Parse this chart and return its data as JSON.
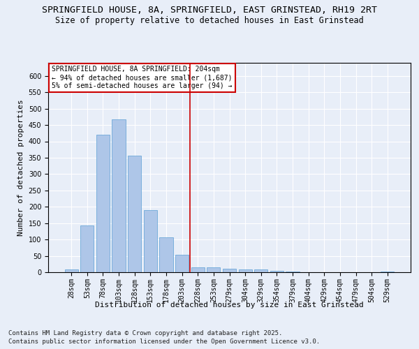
{
  "title1": "SPRINGFIELD HOUSE, 8A, SPRINGFIELD, EAST GRINSTEAD, RH19 2RT",
  "title2": "Size of property relative to detached houses in East Grinstead",
  "xlabel": "Distribution of detached houses by size in East Grinstead",
  "ylabel": "Number of detached properties",
  "bar_color": "#aec6e8",
  "bar_edge_color": "#5a9fd4",
  "background_color": "#e8eef8",
  "fig_background_color": "#e8eef8",
  "grid_color": "#ffffff",
  "categories": [
    "28sqm",
    "53sqm",
    "78sqm",
    "103sqm",
    "128sqm",
    "153sqm",
    "178sqm",
    "203sqm",
    "228sqm",
    "253sqm",
    "279sqm",
    "304sqm",
    "329sqm",
    "354sqm",
    "379sqm",
    "404sqm",
    "429sqm",
    "454sqm",
    "479sqm",
    "504sqm",
    "529sqm"
  ],
  "values": [
    8,
    143,
    421,
    468,
    356,
    190,
    107,
    53,
    16,
    14,
    11,
    8,
    8,
    4,
    2,
    1,
    1,
    0,
    0,
    0,
    2
  ],
  "ylim": [
    0,
    640
  ],
  "yticks": [
    0,
    50,
    100,
    150,
    200,
    250,
    300,
    350,
    400,
    450,
    500,
    550,
    600
  ],
  "vline_color": "#cc0000",
  "vline_pos": 7.5,
  "legend_title": "SPRINGFIELD HOUSE, 8A SPRINGFIELD: 204sqm",
  "legend_line1": "← 94% of detached houses are smaller (1,687)",
  "legend_line2": "5% of semi-detached houses are larger (94) →",
  "legend_box_color": "#cc0000",
  "footer_line1": "Contains HM Land Registry data © Crown copyright and database right 2025.",
  "footer_line2": "Contains public sector information licensed under the Open Government Licence v3.0.",
  "title1_fontsize": 9.5,
  "title2_fontsize": 8.5,
  "axis_label_fontsize": 8,
  "tick_fontsize": 7,
  "legend_fontsize": 7,
  "footer_fontsize": 6.5
}
